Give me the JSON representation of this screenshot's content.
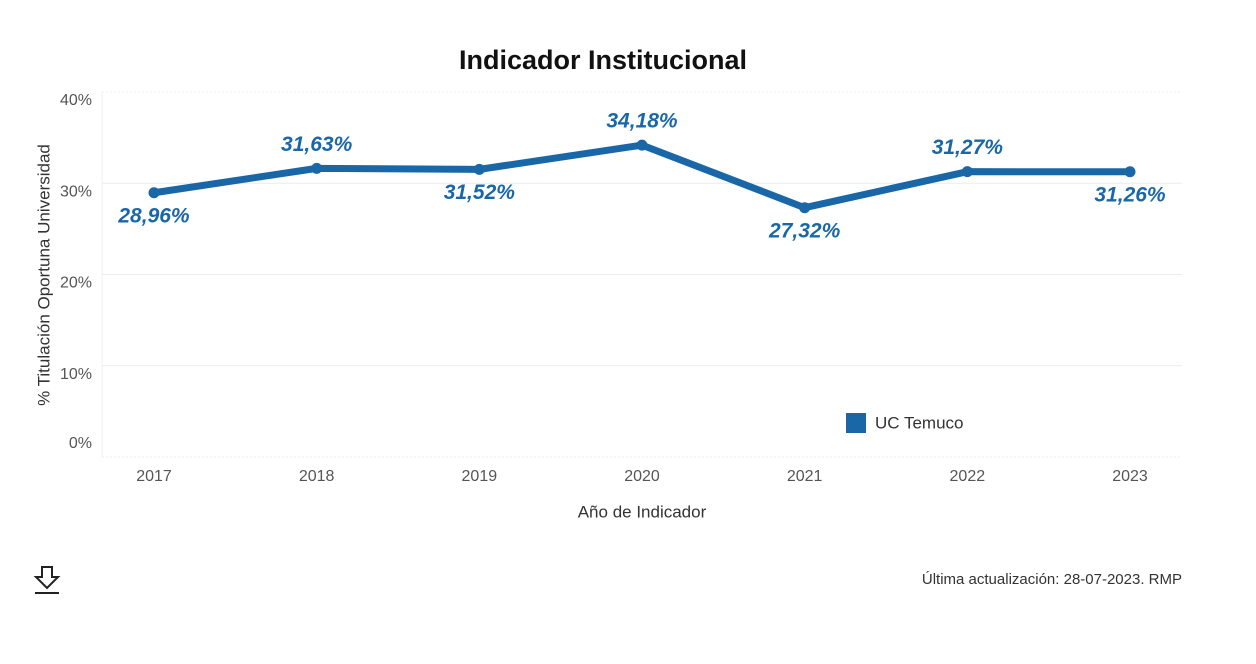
{
  "chart_data": {
    "type": "line",
    "title": "Indicador Institucional",
    "x_label": "Año de Indicador",
    "y_label": "% Titulación Oportuna Universidad",
    "categories": [
      "2017",
      "2018",
      "2019",
      "2020",
      "2021",
      "2022",
      "2023"
    ],
    "series": [
      {
        "name": "UC Temuco",
        "color": "#1a67a8",
        "values": [
          28.96,
          31.63,
          31.52,
          34.18,
          27.32,
          31.27,
          31.26
        ],
        "value_labels": [
          "28,96%",
          "31,63%",
          "31,52%",
          "34,18%",
          "27,32%",
          "31,27%",
          "31,26%"
        ]
      }
    ],
    "ylim": [
      0,
      40
    ],
    "yticks": [
      {
        "value": 0,
        "label": "0%"
      },
      {
        "value": 10,
        "label": "10%"
      },
      {
        "value": 20,
        "label": "20%"
      },
      {
        "value": 30,
        "label": "30%"
      },
      {
        "value": 40,
        "label": "40%"
      }
    ],
    "grid": true,
    "legend_position": "bottom-right"
  },
  "footer": {
    "update_note": "Última actualización: 28-07-2023. RMP"
  }
}
